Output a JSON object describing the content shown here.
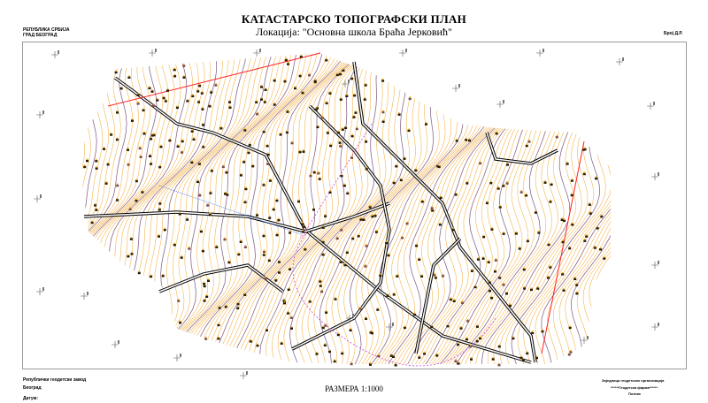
{
  "header": {
    "title": "КАТАСТАРСКО ТОПОГРАФСКИ ПЛАН",
    "subtitle": "Локација: \"Основна школа Браћа Јерковић\"",
    "top_left_line1": "РЕПУБЛИКА СРБИЈА",
    "top_left_line2": "ГРАД БЕОГРАД",
    "top_right": "Број Д.Р."
  },
  "footer": {
    "scale": "РАЗМЕРА 1:1000",
    "left_line1": "Републички геодетски завод",
    "left_line2": "Београд",
    "left_line3": "Датум:",
    "right_line1": "Заједница геодетских организација",
    "right_line2": "******Геодетска фирма******",
    "right_line3": "Потпис"
  },
  "colors": {
    "contour_major": "#8a6a8a",
    "contour_minor": "#f5b550",
    "boundary": "#ff2020",
    "road": "#000000",
    "utility": "#cc44dd",
    "water": "#3366ff"
  }
}
